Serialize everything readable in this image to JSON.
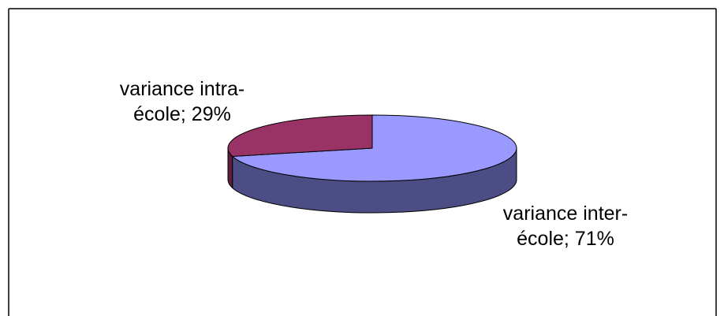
{
  "chart_data": {
    "type": "pie",
    "values": [
      71,
      29
    ],
    "value_labels": [
      "variance inter-école; 71%",
      "variance intra-école; 29%"
    ],
    "colors": [
      "#9999ff",
      "#993366"
    ],
    "side_colors": [
      "#4d4d85",
      "#5c1f3e"
    ]
  }
}
